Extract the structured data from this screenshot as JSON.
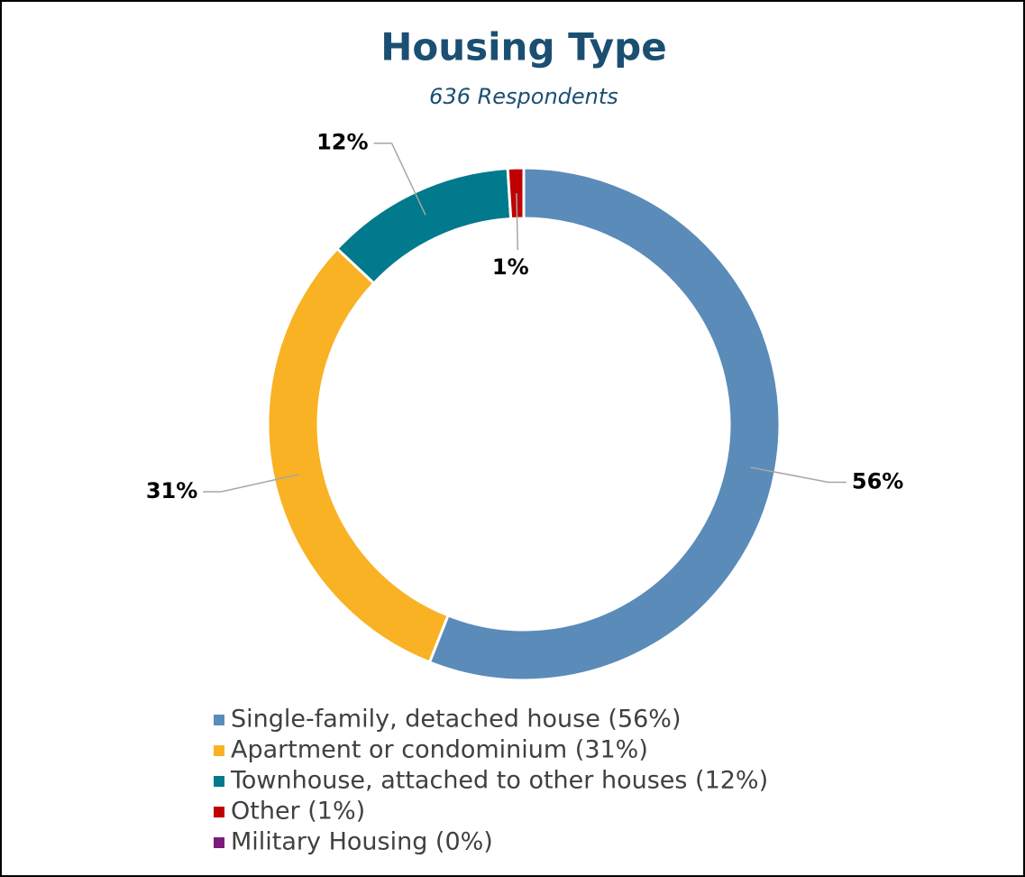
{
  "chart_data": {
    "type": "donut",
    "title": "Housing Type",
    "subtitle": "636 Respondents",
    "categories": [
      "Single-family, detached house (56%)",
      "Apartment or condominium (31%)",
      "Townhouse, attached to other houses (12%)",
      "Other (1%)",
      "Military Housing (0%)"
    ],
    "values": [
      56,
      31,
      12,
      1,
      0
    ],
    "value_labels": [
      "56%",
      "31%",
      "12%",
      "1%",
      null
    ],
    "colors": [
      "#5b8bb8",
      "#f9b224",
      "#007a8c",
      "#c00000",
      "#7b1c7b"
    ],
    "legend": "bottom"
  }
}
